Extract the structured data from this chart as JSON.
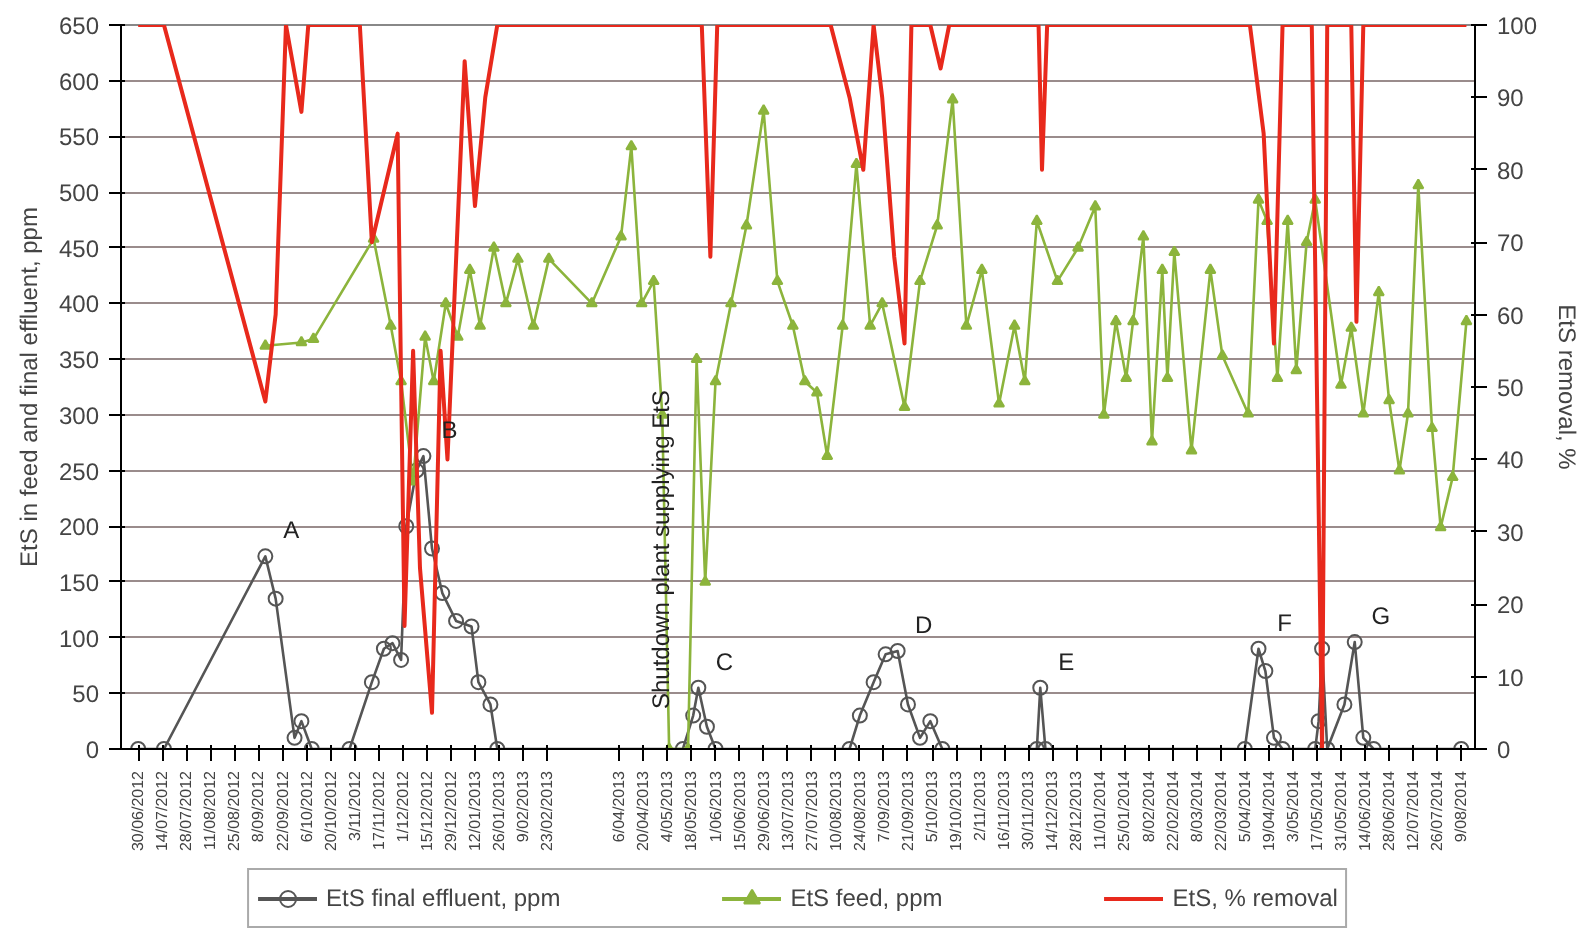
{
  "chart_data": {
    "type": "line",
    "ylabel": "EtS in feed and final effluent, ppm",
    "y2label": "EtS removal, %",
    "xlim": [
      "2012-06-20",
      "2014-08-17"
    ],
    "ylim": [
      0,
      650
    ],
    "yticks": [
      0,
      50,
      100,
      150,
      200,
      250,
      300,
      350,
      400,
      450,
      500,
      550,
      600,
      650
    ],
    "y2lim": [
      0,
      100
    ],
    "y2ticks": [
      0,
      10,
      20,
      30,
      40,
      50,
      60,
      70,
      80,
      90,
      100
    ],
    "xticks": [
      {
        "value": "2012-06-30",
        "label": "30/06/2012"
      },
      {
        "value": "2012-07-14",
        "label": "14/07/2012"
      },
      {
        "value": "2012-07-28",
        "label": "28/07/2012"
      },
      {
        "value": "2012-08-11",
        "label": "11/08/2012"
      },
      {
        "value": "2012-08-25",
        "label": "25/08/2012"
      },
      {
        "value": "2012-09-08",
        "label": "8/09/2012"
      },
      {
        "value": "2012-09-22",
        "label": "22/09/2012"
      },
      {
        "value": "2012-10-06",
        "label": "6/10/2012"
      },
      {
        "value": "2012-10-20",
        "label": "20/10/2012"
      },
      {
        "value": "2012-11-03",
        "label": "3/11/2012"
      },
      {
        "value": "2012-11-17",
        "label": "17/11/2012"
      },
      {
        "value": "2012-12-01",
        "label": "1/12/2012"
      },
      {
        "value": "2012-12-15",
        "label": "15/12/2012"
      },
      {
        "value": "2012-12-29",
        "label": "29/12/2012"
      },
      {
        "value": "2013-01-12",
        "label": "12/01/2013"
      },
      {
        "value": "2013-01-26",
        "label": "26/01/2013"
      },
      {
        "value": "2013-02-09",
        "label": "9/02/2013"
      },
      {
        "value": "2013-02-23",
        "label": "23/02/2013"
      },
      {
        "value": "2013-04-06",
        "label": "6/04/2013"
      },
      {
        "value": "2013-04-20",
        "label": "20/04/2013"
      },
      {
        "value": "2013-05-04",
        "label": "4/05/2013"
      },
      {
        "value": "2013-05-18",
        "label": "18/05/2013"
      },
      {
        "value": "2013-06-01",
        "label": "1/06/2013"
      },
      {
        "value": "2013-06-15",
        "label": "15/06/2013"
      },
      {
        "value": "2013-06-29",
        "label": "29/06/2013"
      },
      {
        "value": "2013-07-13",
        "label": "13/07/2013"
      },
      {
        "value": "2013-07-27",
        "label": "27/07/2013"
      },
      {
        "value": "2013-08-10",
        "label": "10/08/2013"
      },
      {
        "value": "2013-08-24",
        "label": "24/08/2013"
      },
      {
        "value": "2013-09-07",
        "label": "7/09/2013"
      },
      {
        "value": "2013-09-21",
        "label": "21/09/2013"
      },
      {
        "value": "2013-10-05",
        "label": "5/10/2013"
      },
      {
        "value": "2013-10-19",
        "label": "19/10/2013"
      },
      {
        "value": "2013-11-02",
        "label": "2/11/2013"
      },
      {
        "value": "2013-11-16",
        "label": "16/11/2013"
      },
      {
        "value": "2013-11-30",
        "label": "30/11/2013"
      },
      {
        "value": "2013-12-14",
        "label": "14/12/2013"
      },
      {
        "value": "2013-12-28",
        "label": "28/12/2013"
      },
      {
        "value": "2014-01-11",
        "label": "11/01/2014"
      },
      {
        "value": "2014-01-25",
        "label": "25/01/2014"
      },
      {
        "value": "2014-02-08",
        "label": "8/02/2014"
      },
      {
        "value": "2014-02-22",
        "label": "22/02/2014"
      },
      {
        "value": "2014-03-08",
        "label": "8/03/2014"
      },
      {
        "value": "2014-03-22",
        "label": "22/03/2014"
      },
      {
        "value": "2014-04-05",
        "label": "5/04/2014"
      },
      {
        "value": "2014-04-19",
        "label": "19/04/2014"
      },
      {
        "value": "2014-05-03",
        "label": "3/05/2014"
      },
      {
        "value": "2014-05-17",
        "label": "17/05/2014"
      },
      {
        "value": "2014-05-31",
        "label": "31/05/2014"
      },
      {
        "value": "2014-06-14",
        "label": "14/06/2014"
      },
      {
        "value": "2014-06-28",
        "label": "28/06/2014"
      },
      {
        "value": "2014-07-12",
        "label": "12/07/2014"
      },
      {
        "value": "2014-07-26",
        "label": "26/07/2014"
      },
      {
        "value": "2014-08-09",
        "label": "9/08/2014"
      }
    ],
    "grid": "y",
    "legend": "bottom",
    "line_style": "solid",
    "series": [
      {
        "name": "EtS final effluent, ppm",
        "color": "#555555",
        "marker": "circle",
        "x": [
          "2012-06-30",
          "2012-07-15",
          "2012-09-12",
          "2012-09-18",
          "2012-09-29",
          "2012-10-03",
          "2012-10-09",
          "2012-10-31",
          "2012-11-13",
          "2012-11-20",
          "2012-11-25",
          "2012-11-30",
          "2012-12-03",
          "2012-12-09",
          "2012-12-13",
          "2012-12-18",
          "2012-12-24",
          "2013-01-01",
          "2013-01-10",
          "2013-01-14",
          "2013-01-21",
          "2013-01-25",
          "2013-05-13",
          "2013-05-19",
          "2013-05-22",
          "2013-05-27",
          "2013-06-01",
          "2013-08-18",
          "2013-08-24",
          "2013-09-01",
          "2013-09-08",
          "2013-09-15",
          "2013-09-21",
          "2013-09-28",
          "2013-10-04",
          "2013-10-11",
          "2013-12-05",
          "2013-12-07",
          "2013-12-10",
          "2014-04-05",
          "2014-04-13",
          "2014-04-17",
          "2014-04-22",
          "2014-04-27",
          "2014-05-16",
          "2014-05-18",
          "2014-05-20",
          "2014-05-23",
          "2014-06-02",
          "2014-06-08",
          "2014-06-13",
          "2014-06-19",
          "2014-08-09"
        ],
        "values": [
          0,
          0,
          173,
          135,
          10,
          25,
          0,
          0,
          60,
          90,
          95,
          80,
          200,
          250,
          263,
          180,
          140,
          115,
          110,
          60,
          40,
          0,
          0,
          30,
          55,
          20,
          0,
          0,
          30,
          60,
          85,
          88,
          40,
          10,
          25,
          0,
          0,
          55,
          0,
          0,
          90,
          70,
          10,
          0,
          0,
          25,
          90,
          0,
          40,
          96,
          10,
          0,
          0
        ]
      },
      {
        "name": "EtS feed, ppm",
        "color": "#8cb43c",
        "marker": "triangle",
        "x": [
          "2012-09-12",
          "2012-10-03",
          "2012-10-10",
          "2012-11-14",
          "2012-11-24",
          "2012-11-30",
          "2012-12-07",
          "2012-12-14",
          "2012-12-19",
          "2012-12-26",
          "2013-01-02",
          "2013-01-09",
          "2013-01-15",
          "2013-01-23",
          "2013-01-30",
          "2013-02-06",
          "2013-02-15",
          "2013-02-24",
          "2013-03-21",
          "2013-04-07",
          "2013-04-13",
          "2013-04-19",
          "2013-04-26",
          "2013-05-01",
          "2013-05-05",
          "2013-05-16",
          "2013-05-21",
          "2013-05-26",
          "2013-06-01",
          "2013-06-10",
          "2013-06-19",
          "2013-06-29",
          "2013-07-07",
          "2013-07-16",
          "2013-07-23",
          "2013-07-30",
          "2013-08-05",
          "2013-08-14",
          "2013-08-22",
          "2013-08-30",
          "2013-09-06",
          "2013-09-19",
          "2013-09-28",
          "2013-10-08",
          "2013-10-17",
          "2013-10-25",
          "2013-11-03",
          "2013-11-13",
          "2013-11-22",
          "2013-11-28",
          "2013-12-05",
          "2013-12-17",
          "2013-12-29",
          "2014-01-08",
          "2014-01-13",
          "2014-01-20",
          "2014-01-26",
          "2014-01-30",
          "2014-02-05",
          "2014-02-10",
          "2014-02-16",
          "2014-02-19",
          "2014-02-23",
          "2014-03-05",
          "2014-03-16",
          "2014-03-23",
          "2014-04-07",
          "2014-04-13",
          "2014-04-18",
          "2014-04-24",
          "2014-04-30",
          "2014-05-05",
          "2014-05-11",
          "2014-05-16",
          "2014-05-31",
          "2014-06-06",
          "2014-06-13",
          "2014-06-22",
          "2014-06-28",
          "2014-07-04",
          "2014-07-09",
          "2014-07-15",
          "2014-07-23",
          "2014-07-28",
          "2014-08-04",
          "2014-08-12"
        ],
        "values": [
          362,
          365,
          368,
          458,
          380,
          330,
          240,
          370,
          330,
          400,
          370,
          430,
          380,
          450,
          400,
          440,
          380,
          440,
          400,
          460,
          541,
          400,
          420,
          300,
          0,
          0,
          350,
          150,
          330,
          400,
          470,
          573,
          420,
          380,
          330,
          320,
          263,
          380,
          525,
          380,
          400,
          307,
          420,
          470,
          583,
          380,
          430,
          310,
          380,
          330,
          474,
          420,
          450,
          487,
          300,
          384,
          333,
          384,
          460,
          276,
          430,
          333,
          446,
          268,
          430,
          353,
          301,
          493,
          474,
          333,
          474,
          340,
          455,
          493,
          327,
          378,
          301,
          410,
          313,
          250,
          301,
          506,
          288,
          199,
          244,
          384
        ]
      },
      {
        "name": "EtS, % removal",
        "color": "#e8291c",
        "marker": "none",
        "axis": "y2",
        "x": [
          "2012-06-30",
          "2012-07-15",
          "2012-09-12",
          "2012-09-18",
          "2012-09-24",
          "2012-10-03",
          "2012-10-07",
          "2012-11-06",
          "2012-11-13",
          "2012-11-28",
          "2012-12-02",
          "2012-12-07",
          "2012-12-11",
          "2012-12-18",
          "2012-12-23",
          "2012-12-27",
          "2013-01-06",
          "2013-01-12",
          "2013-01-18",
          "2013-01-25",
          "2013-05-24",
          "2013-05-29",
          "2013-06-02",
          "2013-08-07",
          "2013-08-18",
          "2013-08-26",
          "2013-09-01",
          "2013-09-06",
          "2013-09-13",
          "2013-09-19",
          "2013-09-23",
          "2013-10-04",
          "2013-10-10",
          "2013-10-15",
          "2013-12-06",
          "2013-12-08",
          "2013-12-11",
          "2014-04-08",
          "2014-04-16",
          "2014-04-22",
          "2014-04-27",
          "2014-05-14",
          "2014-05-20",
          "2014-05-23",
          "2014-06-06",
          "2014-06-09",
          "2014-06-13",
          "2014-08-12"
        ],
        "values": [
          100,
          100,
          48,
          60,
          100,
          88,
          100,
          100,
          70,
          85,
          17,
          55,
          25,
          5,
          55,
          40,
          95,
          75,
          90,
          100,
          100,
          68,
          100,
          100,
          90,
          80,
          100,
          90,
          68,
          56,
          100,
          100,
          94,
          100,
          100,
          80,
          100,
          100,
          85,
          56,
          100,
          100,
          0,
          100,
          100,
          59,
          100,
          100
        ]
      }
    ],
    "annotations": [
      {
        "text": "A",
        "x": "2012-09-12",
        "y": 173
      },
      {
        "text": "B",
        "x": "2012-12-13",
        "y": 263
      },
      {
        "text": "C",
        "x": "2013-05-22",
        "y": 55
      },
      {
        "text": "D",
        "x": "2013-09-15",
        "y": 88
      },
      {
        "text": "E",
        "x": "2013-12-07",
        "y": 55
      },
      {
        "text": "F",
        "x": "2014-04-13",
        "y": 90
      },
      {
        "text": "G",
        "x": "2014-06-08",
        "y": 96
      },
      "Shutdown plant supplying EtS"
    ]
  }
}
